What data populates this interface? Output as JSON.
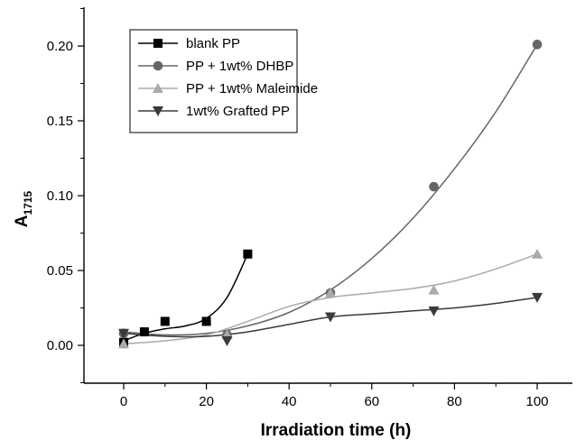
{
  "chart_data": {
    "type": "scatter",
    "xlabel": "Irradiation time (h)",
    "ylabel": "A",
    "ylabel_sub": "1715",
    "xlim": [
      -10,
      110
    ],
    "ylim": [
      -0.025,
      0.225
    ],
    "xticks": [
      0,
      20,
      40,
      60,
      80,
      100
    ],
    "yticks": [
      0.0,
      0.05,
      0.1,
      0.15,
      0.2
    ],
    "ytick_labels": [
      "0.00",
      "0.05",
      "0.10",
      "0.15",
      "0.20"
    ],
    "grid": false,
    "legend_position": "top-left",
    "series": [
      {
        "name": "blank PP",
        "marker": "square",
        "marker_color": "#000000",
        "line_color": "#000000",
        "x": [
          0,
          5,
          10,
          20,
          30
        ],
        "y": [
          0.002,
          0.009,
          0.016,
          0.016,
          0.061
        ],
        "fit": [
          [
            0,
            0.003
          ],
          [
            5,
            0.008
          ],
          [
            10,
            0.011
          ],
          [
            15,
            0.013
          ],
          [
            20,
            0.018
          ],
          [
            25,
            0.032
          ],
          [
            30,
            0.061
          ]
        ]
      },
      {
        "name": "PP + 1wt% DHBP",
        "marker": "circle",
        "marker_color": "#666666",
        "line_color": "#666666",
        "x": [
          0,
          25,
          50,
          75,
          100
        ],
        "y": [
          0.008,
          0.007,
          0.035,
          0.106,
          0.201
        ],
        "fit": [
          [
            0,
            0.009
          ],
          [
            10,
            0.007
          ],
          [
            20,
            0.008
          ],
          [
            30,
            0.013
          ],
          [
            40,
            0.022
          ],
          [
            50,
            0.037
          ],
          [
            60,
            0.058
          ],
          [
            70,
            0.085
          ],
          [
            80,
            0.118
          ],
          [
            90,
            0.156
          ],
          [
            100,
            0.201
          ]
        ]
      },
      {
        "name": "PP + 1wt% Maleimide",
        "marker": "triangle-up",
        "marker_color": "#aaaaaa",
        "line_color": "#aaaaaa",
        "x": [
          0,
          25,
          50,
          75,
          100
        ],
        "y": [
          0.001,
          0.007,
          0.035,
          0.037,
          0.061
        ],
        "fit": [
          [
            0,
            0.001
          ],
          [
            10,
            0.003
          ],
          [
            20,
            0.007
          ],
          [
            30,
            0.016
          ],
          [
            40,
            0.026
          ],
          [
            50,
            0.032
          ],
          [
            60,
            0.035
          ],
          [
            70,
            0.038
          ],
          [
            80,
            0.043
          ],
          [
            90,
            0.051
          ],
          [
            100,
            0.061
          ]
        ]
      },
      {
        "name": "1wt% Grafted PP",
        "marker": "triangle-down",
        "marker_color": "#3a3a3a",
        "line_color": "#3a3a3a",
        "x": [
          0,
          25,
          50,
          75,
          100
        ],
        "y": [
          0.008,
          0.003,
          0.019,
          0.023,
          0.032
        ],
        "fit": [
          [
            0,
            0.008
          ],
          [
            10,
            0.006
          ],
          [
            20,
            0.006
          ],
          [
            30,
            0.009
          ],
          [
            40,
            0.014
          ],
          [
            50,
            0.019
          ],
          [
            60,
            0.021
          ],
          [
            70,
            0.023
          ],
          [
            80,
            0.025
          ],
          [
            90,
            0.028
          ],
          [
            100,
            0.032
          ]
        ]
      }
    ]
  }
}
